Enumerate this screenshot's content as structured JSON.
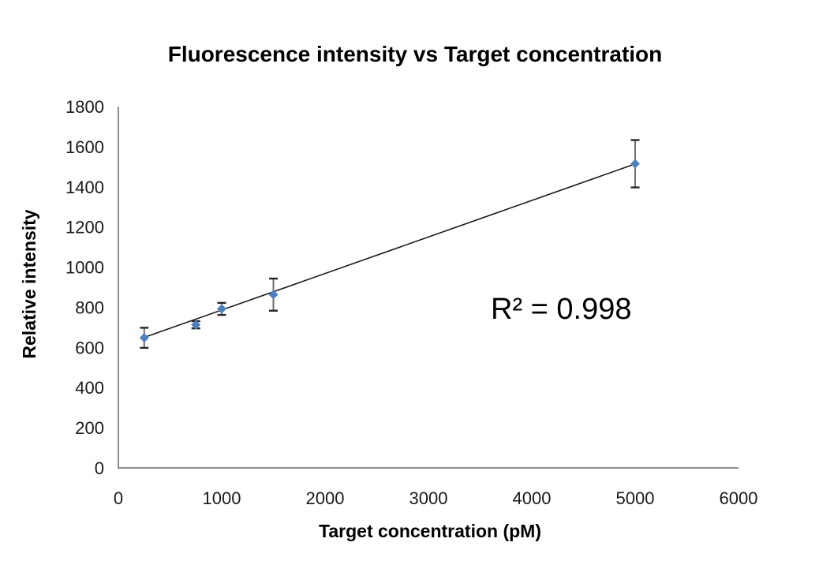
{
  "chart_data": {
    "type": "scatter",
    "title": "Fluorescence intensity vs Target concentration",
    "xlabel": "Target concentration (pM)",
    "ylabel": "Relative intensity",
    "xlim": [
      0,
      6000
    ],
    "ylim": [
      0,
      1800
    ],
    "xticks": [
      0,
      1000,
      2000,
      3000,
      4000,
      5000,
      6000
    ],
    "yticks": [
      0,
      200,
      400,
      600,
      800,
      1000,
      1200,
      1400,
      1600,
      1800
    ],
    "grid": false,
    "legend": null,
    "annotation": "R² = 0.998",
    "series": [
      {
        "name": "Fluorescence intensity",
        "marker": "diamond",
        "color": "#4f81bd",
        "points": [
          {
            "x": 250,
            "y": 648,
            "err": 50
          },
          {
            "x": 750,
            "y": 713,
            "err": 18
          },
          {
            "x": 1000,
            "y": 792,
            "err": 30
          },
          {
            "x": 1500,
            "y": 863,
            "err": 80
          },
          {
            "x": 5000,
            "y": 1515,
            "err": 118
          }
        ]
      }
    ],
    "trendline": {
      "x1": 250,
      "y1": 650,
      "x2": 5000,
      "y2": 1514,
      "color": "#1a1a1a"
    }
  },
  "colors": {
    "axis": "#808080",
    "error_bar_line": "#6e6e6e",
    "error_bar_cap": "#262626",
    "marker": "#4f81bd",
    "trendline": "#1a1a1a",
    "background": "#ffffff",
    "text": "#000000"
  }
}
